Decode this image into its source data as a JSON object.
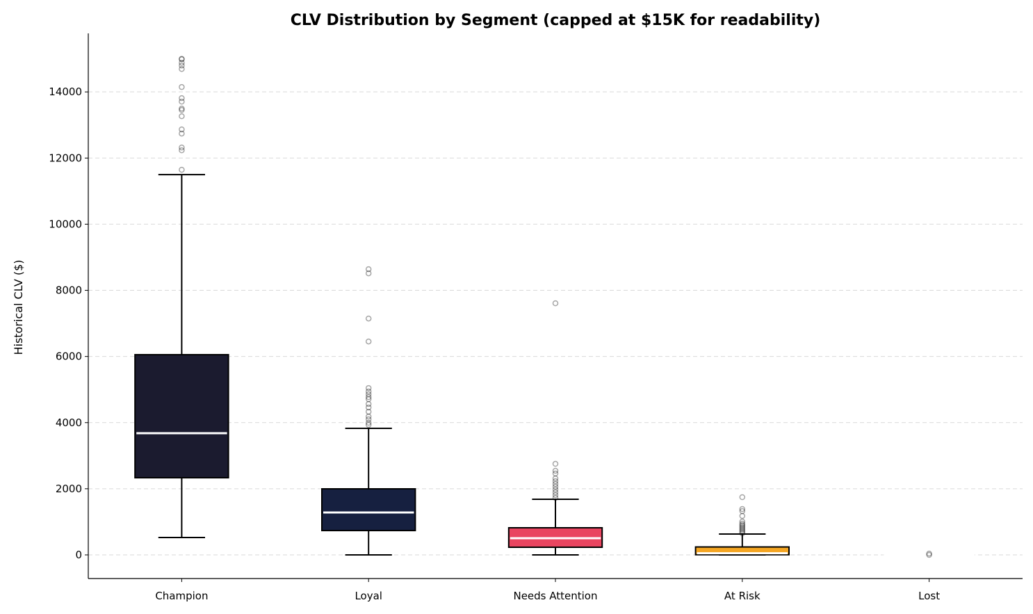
{
  "chart_data": {
    "type": "box",
    "title": "CLV Distribution by Segment (capped at $15K for readability)",
    "xlabel": "",
    "ylabel": "Historical CLV ($)",
    "ylim": [
      -715,
      15770
    ],
    "yticks": [
      0,
      2000,
      4000,
      6000,
      8000,
      10000,
      12000,
      14000
    ],
    "grid": "y-dashed",
    "categories": [
      "Champion",
      "Loyal",
      "Needs Attention",
      "At Risk",
      "Lost"
    ],
    "series": [
      {
        "category": "Champion",
        "color": "#1b1b2f",
        "whisker_low": 525,
        "q1": 2333,
        "median": 3679,
        "q3": 6054,
        "whisker_high": 11500,
        "outliers": [
          11646,
          12235,
          12319,
          12740,
          12866,
          13265,
          13454,
          13496,
          13706,
          13811,
          14147,
          14693,
          14798,
          14882,
          14987,
          15000
        ]
      },
      {
        "category": "Loyal",
        "color": "#162040",
        "whisker_low": 0,
        "q1": 736,
        "median": 1282,
        "q3": 1997,
        "whisker_high": 3826,
        "outliers": [
          3931,
          3994,
          4099,
          4183,
          4330,
          4457,
          4562,
          4709,
          4772,
          4856,
          4940,
          5045,
          6453,
          7147,
          8514,
          8640
        ]
      },
      {
        "category": "Needs Attention",
        "color": "#e94560",
        "whisker_low": 0,
        "q1": 231,
        "median": 505,
        "q3": 820,
        "whisker_high": 1682,
        "outliers": [
          1724,
          1808,
          1892,
          1976,
          2060,
          2144,
          2228,
          2312,
          2459,
          2543,
          2754,
          7609
        ]
      },
      {
        "category": "At Risk",
        "color": "#f5a623",
        "whisker_low": 0,
        "q1": 5,
        "median": 50,
        "q3": 240,
        "whisker_high": 631,
        "outliers": [
          652,
          694,
          736,
          778,
          820,
          862,
          904,
          946,
          1009,
          1177,
          1324,
          1387,
          1745
        ]
      },
      {
        "category": "Lost",
        "color": "#ffffff",
        "whisker_low": 0,
        "q1": 0,
        "median": 0,
        "q3": 0,
        "whisker_high": 0,
        "outliers": [
          0,
          40
        ]
      }
    ]
  }
}
